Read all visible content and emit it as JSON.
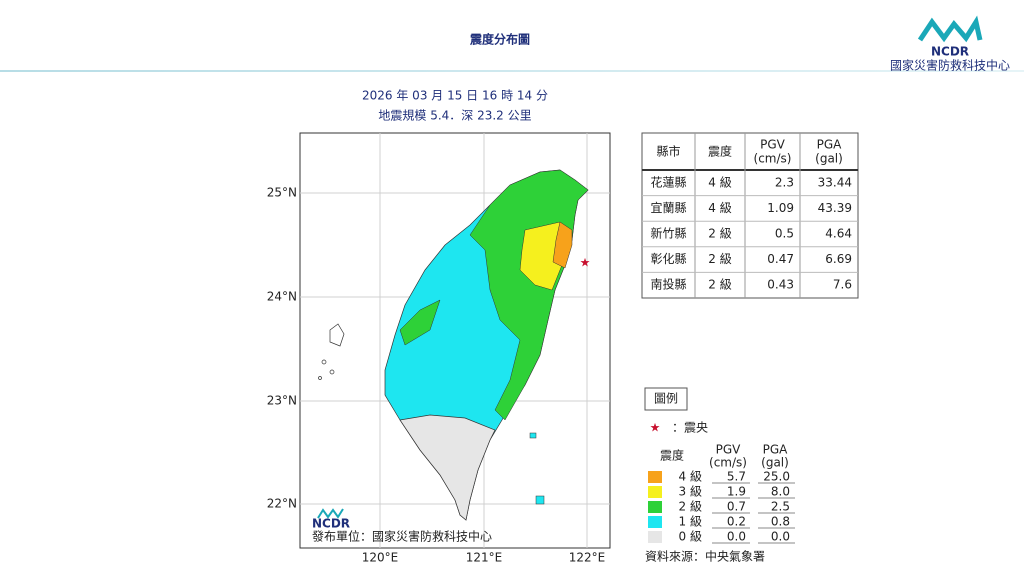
{
  "header": {
    "title": "震度分布圖",
    "logo": "NCDR",
    "org": "國家災害防救科技中心"
  },
  "event": {
    "time": "2026 年 03 月 15 日 16 時 14 分",
    "magnitude": "地震規模 5.4．深 23.2 公里"
  },
  "map": {
    "lat_labels": [
      "25°N",
      "24°N",
      "23°N",
      "22°N"
    ],
    "lon_labels": [
      "120°E",
      "121°E",
      "122°E"
    ],
    "logo": "NCDR",
    "publisher": "發布單位：國家災害防救科技中心"
  },
  "table": {
    "headers": [
      {
        "name": "縣市"
      },
      {
        "name": "震度"
      },
      {
        "name": "PGV",
        "unit": "(cm/s)"
      },
      {
        "name": "PGA",
        "unit": "(gal)"
      }
    ],
    "rows": [
      [
        "花蓮縣",
        "4 級",
        "2.3",
        "33.44"
      ],
      [
        "宜蘭縣",
        "4 級",
        "1.09",
        "43.39"
      ],
      [
        "新竹縣",
        "2 級",
        "0.5",
        "4.64"
      ],
      [
        "彰化縣",
        "2 級",
        "0.47",
        "6.69"
      ],
      [
        "南投縣",
        "2 級",
        "0.43",
        "7.6"
      ]
    ]
  },
  "legend": {
    "title": "圖例",
    "epicenter": "：震央",
    "level_header": "震度",
    "pgv_header": {
      "name": "PGV",
      "unit": "(cm/s)"
    },
    "pga_header": {
      "name": "PGA",
      "unit": "(gal)"
    },
    "rows": [
      {
        "level": "4 級",
        "pgv": "5.7",
        "pga": "25.0",
        "color": "#f7a21b"
      },
      {
        "level": "3 級",
        "pgv": "1.9",
        "pga": "8.0",
        "color": "#f5f01e"
      },
      {
        "level": "2 級",
        "pgv": "0.7",
        "pga": "2.5",
        "color": "#2ed138"
      },
      {
        "level": "1 級",
        "pgv": "0.2",
        "pga": "0.8",
        "color": "#1ee6f0"
      },
      {
        "level": "0 級",
        "pgv": "0.0",
        "pga": "0.0",
        "color": "#e6e6e6"
      }
    ],
    "source": "資料來源：中央氣象署"
  }
}
